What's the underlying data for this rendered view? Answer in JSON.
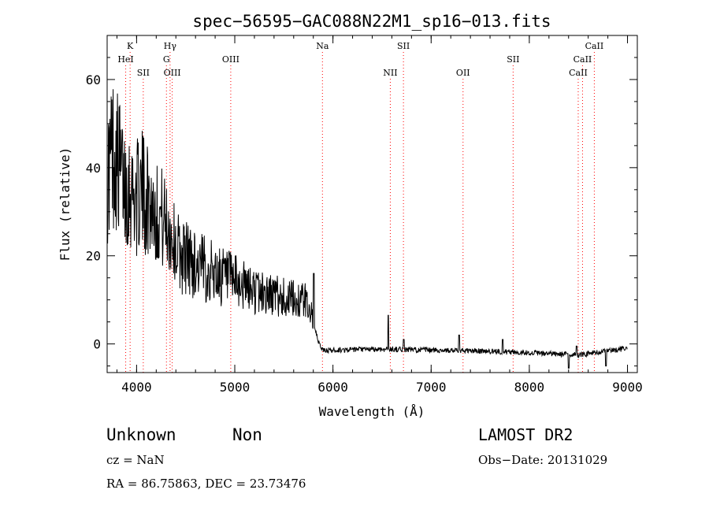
{
  "chart_data": {
    "type": "line",
    "title": "spec−56595−GAC088N22M1_sp16−013.fits",
    "xlabel": "Wavelength (Å)",
    "ylabel": "Flux (relative)",
    "xlim": [
      3700,
      9100
    ],
    "ylim": [
      -6.5,
      70
    ],
    "x_ticks": [
      4000,
      5000,
      6000,
      7000,
      8000,
      9000
    ],
    "y_ticks": [
      0,
      20,
      40,
      60
    ],
    "grid": false,
    "line_color": "#000000",
    "marker_color": "#ff0000",
    "spectrum_anchors": [
      {
        "x": 3705,
        "y": 38
      },
      {
        "x": 3750,
        "y": 44
      },
      {
        "x": 3800,
        "y": 42
      },
      {
        "x": 3850,
        "y": 38
      },
      {
        "x": 3900,
        "y": 36
      },
      {
        "x": 3950,
        "y": 35
      },
      {
        "x": 4000,
        "y": 33
      },
      {
        "x": 4050,
        "y": 35
      },
      {
        "x": 4100,
        "y": 33
      },
      {
        "x": 4150,
        "y": 32
      },
      {
        "x": 4200,
        "y": 30
      },
      {
        "x": 4250,
        "y": 29
      },
      {
        "x": 4300,
        "y": 27
      },
      {
        "x": 4350,
        "y": 25
      },
      {
        "x": 4400,
        "y": 22
      },
      {
        "x": 4450,
        "y": 20
      },
      {
        "x": 4500,
        "y": 20
      },
      {
        "x": 4600,
        "y": 18
      },
      {
        "x": 4700,
        "y": 17
      },
      {
        "x": 4800,
        "y": 16
      },
      {
        "x": 4900,
        "y": 15
      },
      {
        "x": 5000,
        "y": 14
      },
      {
        "x": 5100,
        "y": 13
      },
      {
        "x": 5200,
        "y": 12
      },
      {
        "x": 5300,
        "y": 11.5
      },
      {
        "x": 5400,
        "y": 11
      },
      {
        "x": 5500,
        "y": 10.5
      },
      {
        "x": 5600,
        "y": 10
      },
      {
        "x": 5700,
        "y": 10
      },
      {
        "x": 5750,
        "y": 9
      },
      {
        "x": 5780,
        "y": 7
      },
      {
        "x": 5820,
        "y": 3
      },
      {
        "x": 5860,
        "y": 0
      },
      {
        "x": 5900,
        "y": -1.5
      },
      {
        "x": 6200,
        "y": -1.3
      },
      {
        "x": 6600,
        "y": -1.2
      },
      {
        "x": 7000,
        "y": -1.4
      },
      {
        "x": 7500,
        "y": -1.6
      },
      {
        "x": 8000,
        "y": -2
      },
      {
        "x": 8500,
        "y": -2.5
      },
      {
        "x": 9000,
        "y": -1
      }
    ],
    "spectral_features": [
      {
        "x": 5805,
        "y": 16
      },
      {
        "x": 6563,
        "y": 6.5
      },
      {
        "x": 6720,
        "y": 1
      },
      {
        "x": 7285,
        "y": 2
      },
      {
        "x": 7730,
        "y": 1
      },
      {
        "x": 8400,
        "y": -5.5
      },
      {
        "x": 8480,
        "y": -0.5
      },
      {
        "x": 8780,
        "y": -5
      }
    ],
    "line_markers": [
      {
        "label": "K",
        "x": 3934,
        "row": 1
      },
      {
        "label": "HeI",
        "x": 3889,
        "row": 2
      },
      {
        "label": "SII",
        "x": 4068,
        "row": 3
      },
      {
        "label": "Hγ",
        "x": 4341,
        "row": 1
      },
      {
        "label": "G",
        "x": 4304,
        "row": 2
      },
      {
        "label": "OIII",
        "x": 4363,
        "row": 3
      },
      {
        "label": "OIII",
        "x": 4959,
        "row": 2
      },
      {
        "label": "Na",
        "x": 5893,
        "row": 1
      },
      {
        "label": "SII",
        "x": 6718,
        "row": 1
      },
      {
        "label": "NII",
        "x": 6584,
        "row": 3
      },
      {
        "label": "OII",
        "x": 7325,
        "row": 3
      },
      {
        "label": "SII",
        "x": 7835,
        "row": 2
      },
      {
        "label": "CaII",
        "x": 8662,
        "row": 1
      },
      {
        "label": "CaII",
        "x": 8542,
        "row": 2
      },
      {
        "label": "CaII",
        "x": 8498,
        "row": 3
      }
    ]
  },
  "info": {
    "class": "Unknown",
    "subclass": "Non",
    "cz": "cz = NaN",
    "radec": "RA =  86.75863, DEC =  23.73476",
    "survey": "LAMOST DR2",
    "obsdate": "Obs−Date: 20131029"
  }
}
